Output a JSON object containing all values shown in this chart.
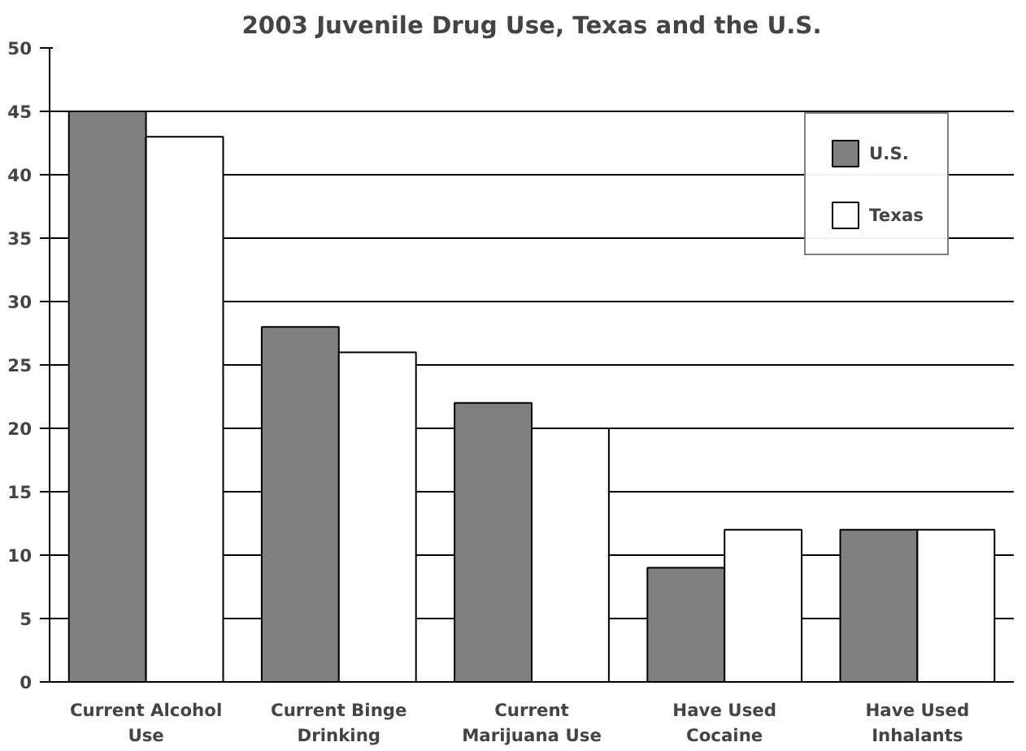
{
  "chart_data": {
    "type": "bar",
    "title": "2003 Juvenile Drug Use, Texas and the U.S.",
    "categories": [
      "Current Alcohol Use",
      "Current Binge Drinking",
      "Current Marijuana Use",
      "Have Used Cocaine",
      "Have Used Inhalants"
    ],
    "series": [
      {
        "name": "U.S.",
        "color": "#808080",
        "values": [
          45,
          28,
          22,
          9,
          12
        ]
      },
      {
        "name": "Texas",
        "color": "#ffffff",
        "values": [
          43,
          26,
          20,
          12,
          12
        ]
      }
    ],
    "ylim": [
      0,
      50
    ],
    "yticks": [
      0,
      5,
      10,
      15,
      20,
      25,
      30,
      35,
      40,
      45,
      50
    ],
    "grid": "y",
    "legend": "top right"
  }
}
